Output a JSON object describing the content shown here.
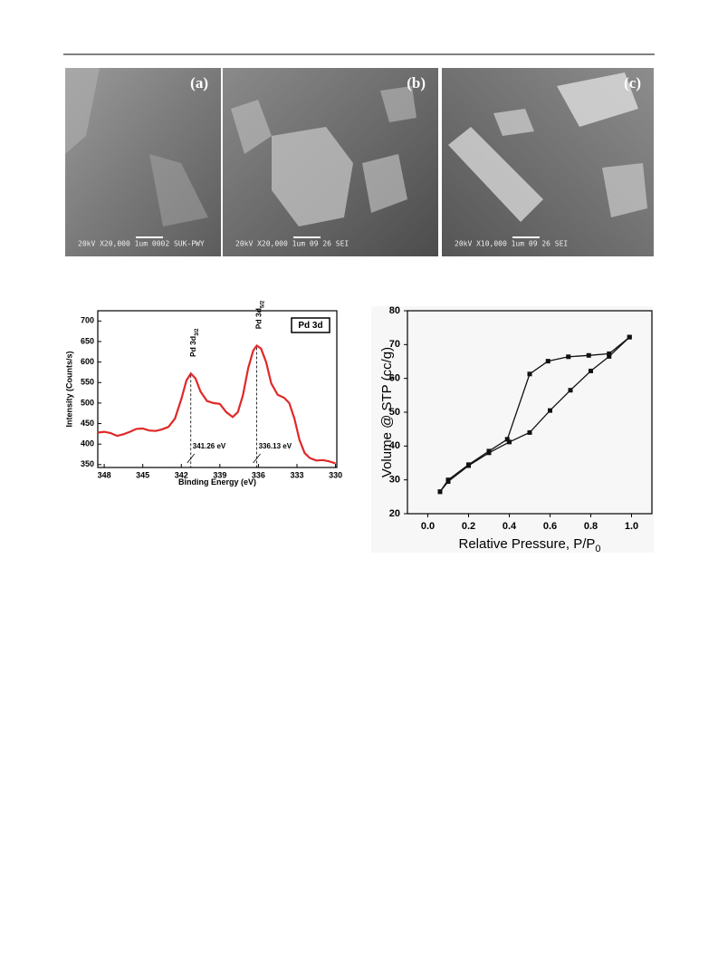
{
  "sem_figure": {
    "panels": [
      {
        "label": "(a)",
        "info": "20kV  X20,000   1um  0002 SUK-PWY"
      },
      {
        "label": "(b)",
        "info": "20kV  X20,000   1um      09 26 SEI"
      },
      {
        "label": "(c)",
        "info": "20kV  X10,000   1um      09 26 SEI"
      }
    ]
  },
  "chart_data": [
    {
      "type": "line",
      "x_label": "Binding Energy (eV)",
      "y_label": "Intensity (Counts/s)",
      "legend_box": "Pd 3d",
      "xlim": [
        348.5,
        329.9
      ],
      "xticks": [
        348,
        345,
        342,
        339,
        336,
        333,
        330
      ],
      "ylim": [
        343,
        725
      ],
      "yticks": [
        350,
        400,
        450,
        500,
        550,
        600,
        650,
        700
      ],
      "series": [
        {
          "color": "#e02828",
          "x": [
            348.5,
            348,
            347.5,
            347,
            346.5,
            346,
            345.5,
            345,
            344.5,
            344,
            343.5,
            343,
            342.5,
            342,
            341.6,
            341.26,
            340.9,
            340.5,
            340,
            339.5,
            339,
            338.5,
            338,
            337.6,
            337.2,
            336.8,
            336.4,
            336.13,
            335.8,
            335.4,
            335,
            334.5,
            334,
            333.6,
            333.2,
            332.8,
            332.4,
            332,
            331.5,
            331,
            330.5,
            330
          ],
          "values": [
            428,
            430,
            427,
            420,
            424,
            430,
            437,
            438,
            433,
            432,
            436,
            442,
            462,
            510,
            555,
            572,
            560,
            528,
            505,
            500,
            498,
            478,
            466,
            478,
            520,
            585,
            628,
            640,
            633,
            600,
            548,
            520,
            513,
            500,
            462,
            410,
            378,
            366,
            360,
            361,
            358,
            353
          ]
        }
      ],
      "annotations": [
        {
          "text": "Pd 3d",
          "sub": "3/2",
          "x": 341.26,
          "y": 572,
          "value_label": "341.26 eV"
        },
        {
          "text": "Pd 3d",
          "sub": "5/2",
          "x": 336.13,
          "y": 640,
          "value_label": "336.13 eV"
        }
      ]
    },
    {
      "type": "line",
      "x_label": "Relative Pressure, P/P",
      "x_label_sub": "0",
      "y_label": "Volume @ STP (cc/g)",
      "xlim": [
        -0.1,
        1.1
      ],
      "xticks": [
        {
          "value": 0,
          "label": "0.0"
        },
        0.2,
        0.4,
        0.6,
        0.8,
        {
          "value": 1,
          "label": "1.0"
        }
      ],
      "ylim": [
        20,
        80
      ],
      "yticks": [
        20,
        30,
        40,
        50,
        60,
        70,
        80
      ],
      "series": [
        {
          "color": "#111111",
          "x": [
            0.06,
            0.1,
            0.2,
            0.3,
            0.4,
            0.5,
            0.6,
            0.7,
            0.8,
            0.89,
            0.99
          ],
          "values": [
            26.5,
            29.5,
            34.2,
            38,
            41.2,
            44,
            50.5,
            56.5,
            62.2,
            66.5,
            72.2
          ]
        },
        {
          "color": "#111111",
          "x": [
            0.99,
            0.89,
            0.79,
            0.69,
            0.59,
            0.5,
            0.39,
            0.3,
            0.2,
            0.1,
            0.06
          ],
          "values": [
            72.2,
            67.3,
            66.8,
            66.4,
            65.1,
            61.3,
            42,
            38.5,
            34.5,
            30,
            26.5
          ]
        }
      ]
    }
  ]
}
